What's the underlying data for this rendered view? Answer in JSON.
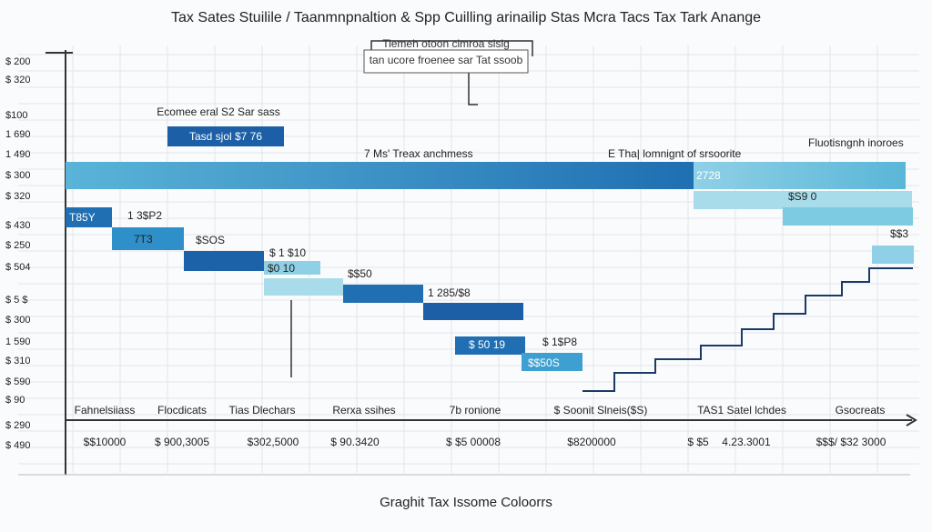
{
  "header": {
    "title": "Tax Sates Stuilile / Taanmnpnaltion & Spp Cuilling arinailip Stas Mcra Tacs Tax Tark Anange"
  },
  "axis_labels": [
    "$ 200",
    "$ 320",
    "$100",
    "1 690",
    "1 490",
    "$ 300",
    "$ 320",
    "$ 430",
    "$ 250",
    "$ 504",
    "$ 5 $",
    "$ 300",
    "1 590",
    "$ 310",
    "$ 590",
    "$ 90",
    "$ 290",
    "$ 490"
  ],
  "annotations": [
    "Tiemeh otoon clmroa sisig",
    "tan ucore froenee sar Tat ssoob",
    "Ecomee eral S2 Sar sass",
    "Tasd sjol $7 76",
    "7 Ms' Treax anchmess",
    "E Tha| lomnignt of srsoorite",
    "Fluotisngnh inoroes",
    "2728",
    "$S9 0",
    "$$3",
    "T85Y",
    "1 3$P2",
    "7T3",
    "$SOS",
    "$ 1 $10",
    "$0 10",
    "$$50",
    "1 285/$8",
    "$ 50 19",
    "$ 1$P8",
    "$$50S"
  ],
  "categories": [
    "Fahnelsiiass",
    "Flocdicats",
    "Tias Dlechars",
    "Rerxa ssihes",
    "7b ronione",
    "$ Soonit Slneis($S)",
    "TAS1 Satel lchdes",
    "Gsocreats"
  ],
  "amounts": [
    "$$10000",
    "$ 900,3005",
    "$302,5000",
    "$ 90.3420",
    "$ $5 00008",
    "$8200000",
    "$ $5",
    "4.23.3001",
    "$$$/ $32 3000"
  ],
  "footer": "Graghit Tax Issome Coloorrs"
}
